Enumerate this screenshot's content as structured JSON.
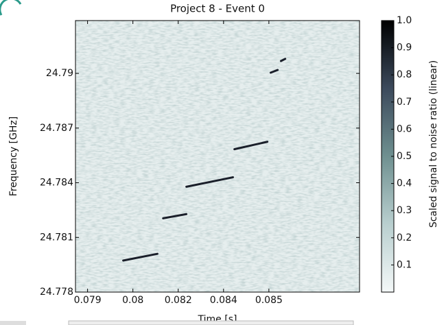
{
  "chart_data": {
    "type": "spectrogram",
    "title": "Project 8 - Event 0",
    "x_label": "Time [s]",
    "y_label": "Frequency [GHz]",
    "colorbar_label": "Scaled signal to noise ratio (linear)",
    "xlim": [
      0.0786,
      0.088
    ],
    "xticks": [
      {
        "value": 0.079,
        "label": "0.079"
      },
      {
        "value": 0.0805,
        "label": "0.08"
      },
      {
        "value": 0.082,
        "label": "0.082"
      },
      {
        "value": 0.0835,
        "label": "0.084"
      },
      {
        "value": 0.085,
        "label": "0.085"
      }
    ],
    "ylim": [
      24.778,
      24.7929
    ],
    "yticks": [
      24.778,
      24.781,
      24.784,
      24.787,
      24.79
    ],
    "clim": [
      0,
      1
    ],
    "cticks": [
      0.1,
      0.2,
      0.3,
      0.4,
      0.5,
      0.6,
      0.7,
      0.8,
      0.9,
      {
        "value": 1,
        "label": "1.0"
      }
    ],
    "colormap": [
      "#f4f8f8",
      "#b9cfcf",
      "#6f9090",
      "#3c4a5c",
      "#000000"
    ],
    "track_color": "#1a1f2a",
    "tracks": [
      {
        "x": [
          0.08018,
          0.08131
        ],
        "y": [
          24.77973,
          24.7801
        ]
      },
      {
        "x": [
          0.0815,
          0.08227
        ],
        "y": [
          24.78205,
          24.78228
        ]
      },
      {
        "x": [
          0.08227,
          0.08381
        ],
        "y": [
          24.78378,
          24.7843
        ]
      },
      {
        "x": [
          0.08386,
          0.08495
        ],
        "y": [
          24.78584,
          24.78625
        ]
      },
      {
        "x": [
          0.08506,
          0.08529
        ],
        "y": [
          24.79004,
          24.79019
        ]
      },
      {
        "x": [
          0.0854,
          0.08554
        ],
        "y": [
          24.79068,
          24.7908
        ]
      }
    ]
  }
}
